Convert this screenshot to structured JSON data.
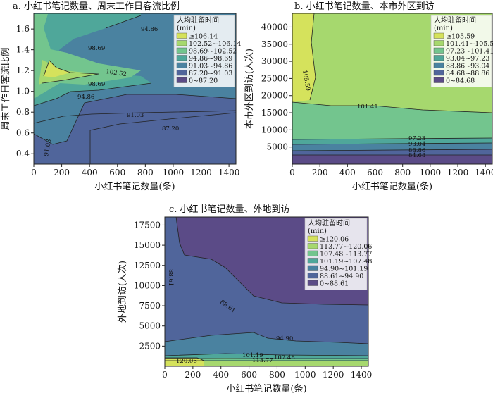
{
  "chart_data": [
    {
      "type": "contour",
      "title": "a. 小红书笔记数量、周末工作日客流比例",
      "xlabel": "小红书笔记数量(条)",
      "ylabel": "周末工作日客流比例",
      "xlim": [
        0,
        1450
      ],
      "ylim": [
        0.3,
        1.75
      ],
      "xticks": [
        0,
        200,
        400,
        600,
        800,
        1000,
        1200,
        1400
      ],
      "yticks": [
        0.4,
        0.6,
        0.8,
        1.0,
        1.2,
        1.4,
        1.6
      ],
      "legend": {
        "title": "人均驻留时间\n(min)",
        "position": "top-right",
        "entries": [
          {
            "label": "≥106.14",
            "color": "#d5e25c"
          },
          {
            "label": "102.52~106.14",
            "color": "#a6d86e"
          },
          {
            "label": "98.69~102.52",
            "color": "#73c58e"
          },
          {
            "label": "94.86~98.69",
            "color": "#4fa79a"
          },
          {
            "label": "91.03~94.86",
            "color": "#4a82a0"
          },
          {
            "label": "87.20~91.03",
            "color": "#50659b"
          },
          {
            "label": "0~87.20",
            "color": "#5b4b87"
          }
        ]
      },
      "contour_labels": [
        "94.86",
        "98.69",
        "102.52",
        "98.69",
        "94.86",
        "91.03",
        "87.20",
        "91.03"
      ]
    },
    {
      "type": "contour",
      "title": "b. 小红书笔记数量、本市外区到访",
      "xlabel": "小红书笔记数量(条)",
      "ylabel": "本市外区到访(人次)",
      "xlim": [
        0,
        1450
      ],
      "ylim": [
        0,
        44000
      ],
      "xticks": [
        0,
        200,
        400,
        600,
        800,
        1000,
        1200,
        1400
      ],
      "yticks": [
        5000,
        10000,
        15000,
        20000,
        25000,
        30000,
        35000,
        40000
      ],
      "legend": {
        "title": "人均驻留时间\n(min)",
        "position": "top-right",
        "entries": [
          {
            "label": "≥105.59",
            "color": "#d5e25c"
          },
          {
            "label": "101.41~105.59",
            "color": "#a6d86e"
          },
          {
            "label": "97.23~101.41",
            "color": "#73c58e"
          },
          {
            "label": "93.04~97.23",
            "color": "#4fa79a"
          },
          {
            "label": "88.86~93.04",
            "color": "#4a82a0"
          },
          {
            "label": "84.68~88.86",
            "color": "#50659b"
          },
          {
            "label": "0~84.68",
            "color": "#5b4b87"
          }
        ]
      },
      "contour_labels": [
        "105.59",
        "101.41",
        "97.23",
        "93.04",
        "88.86",
        "84.68"
      ]
    },
    {
      "type": "contour",
      "title": "c. 小红书笔记数量、外地到访",
      "xlabel": "小红书笔记数量(条)",
      "ylabel": "外地到访(人次)",
      "xlim": [
        0,
        1450
      ],
      "ylim": [
        0,
        18500
      ],
      "xticks": [
        0,
        200,
        400,
        600,
        800,
        1000,
        1200,
        1400
      ],
      "yticks": [
        2500,
        5000,
        7500,
        10000,
        12500,
        15000,
        17500
      ],
      "legend": {
        "title": "人均驻留时间\n(min)",
        "position": "top-right",
        "entries": [
          {
            "label": "≥120.06",
            "color": "#d5e25c"
          },
          {
            "label": "113.77~120.06",
            "color": "#a6d86e"
          },
          {
            "label": "107.48~113.77",
            "color": "#73c58e"
          },
          {
            "label": "101.19~107.48",
            "color": "#4fa79a"
          },
          {
            "label": "94.90~101.19",
            "color": "#4a82a0"
          },
          {
            "label": "88.61~94.90",
            "color": "#50659b"
          },
          {
            "label": "0~88.61",
            "color": "#5b4b87"
          }
        ]
      },
      "contour_labels": [
        "88.61",
        "88.61",
        "94.90",
        "101.19",
        "107.48",
        "113.77",
        "120.06"
      ]
    }
  ]
}
